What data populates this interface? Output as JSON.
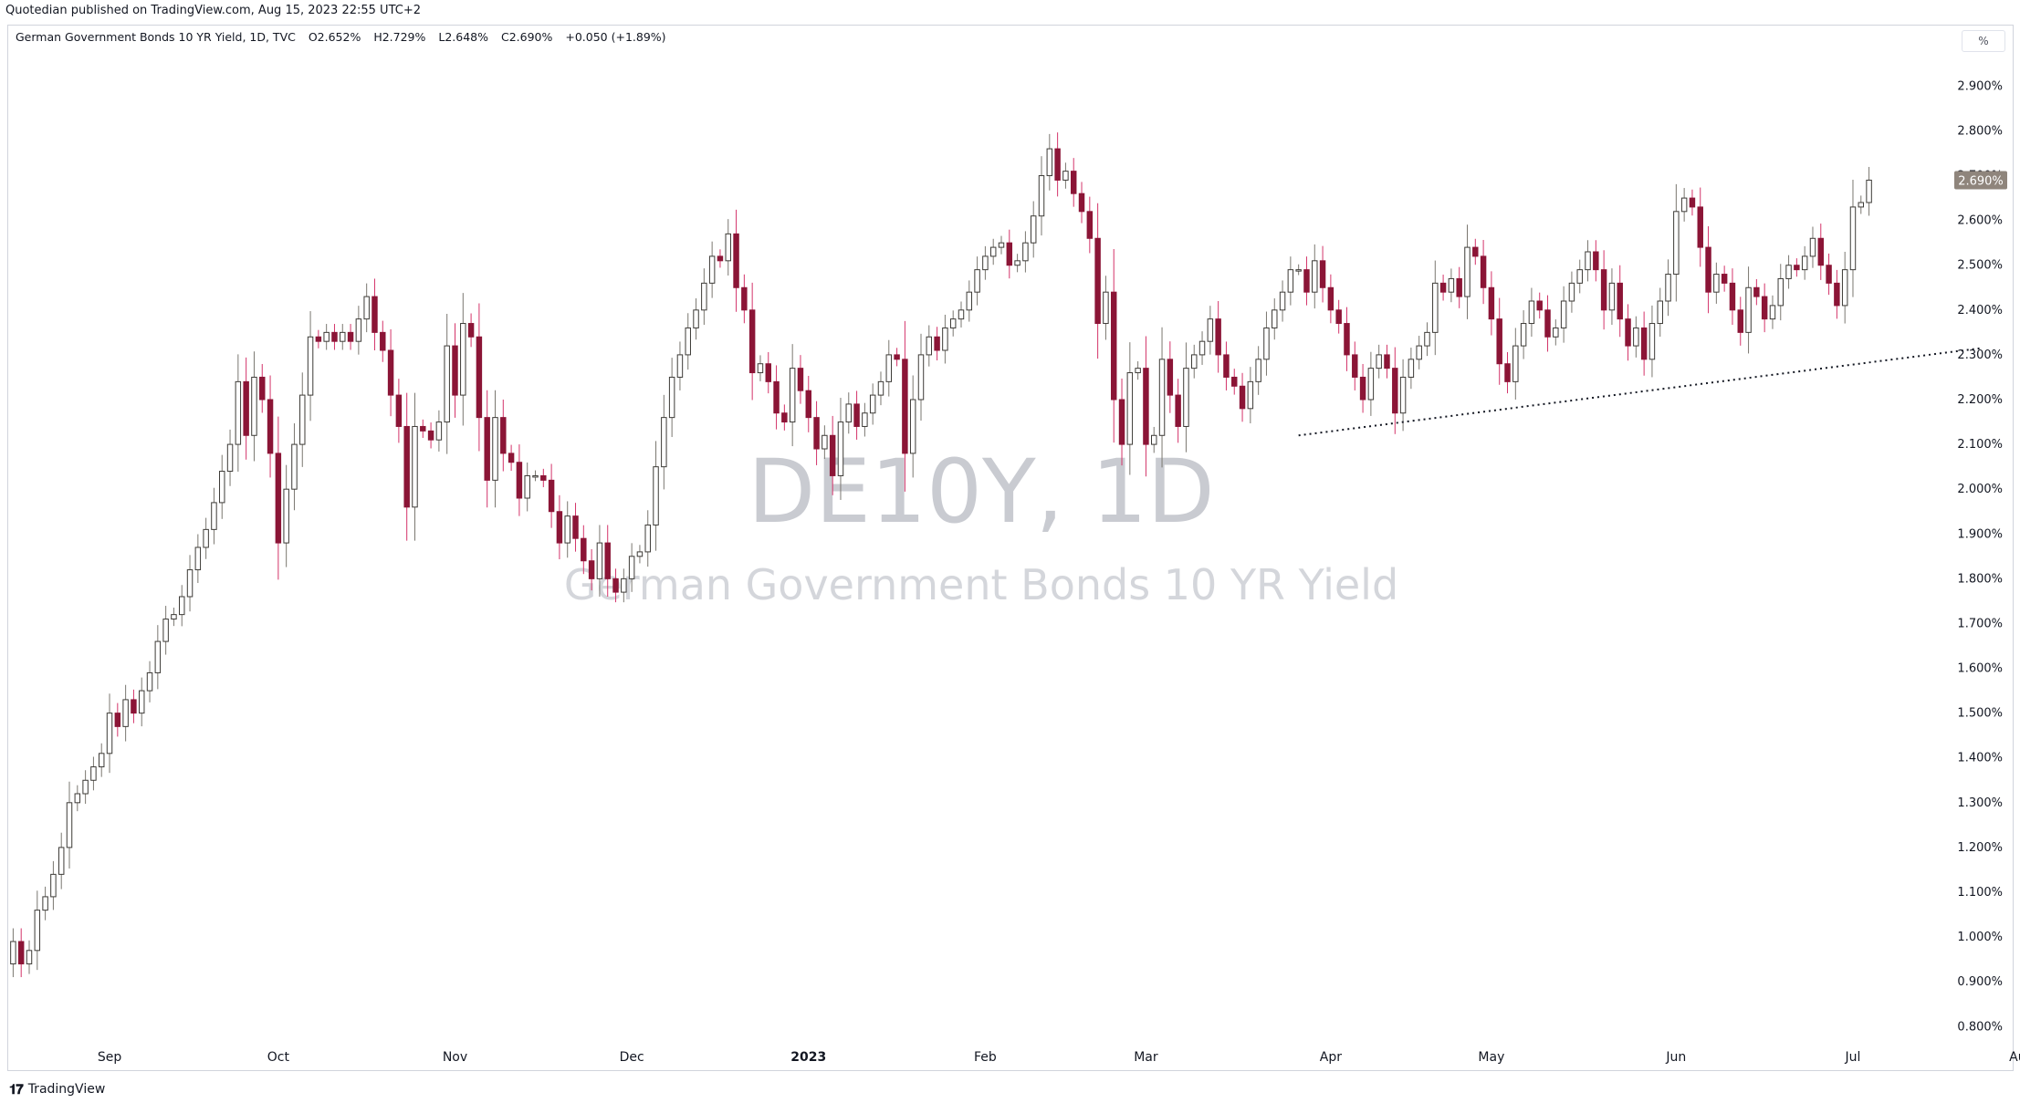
{
  "header": {
    "published": "Quotedian published on TradingView.com, Aug 15, 2023 22:55 UTC+2",
    "legend": {
      "name": "German Government Bonds 10 YR Yield, 1D, TVC",
      "open": "O2.652%",
      "high": "H2.729%",
      "low": "L2.648%",
      "close": "C2.690%",
      "change": "+0.050 (+1.89%)"
    },
    "scale_button": "%"
  },
  "watermark": {
    "symbol": "DE10Y, 1D",
    "description": "German Government Bonds 10 YR Yield"
  },
  "footer": {
    "brand": "TradingView",
    "logo": "tradingview-logo-icon"
  },
  "colors": {
    "up": "#7a7770",
    "up_fill": "#ffffff",
    "down": "#8b1536",
    "down_wick": "#d4346a",
    "last_tag": "#8f857c"
  },
  "chart_data": {
    "type": "candlestick",
    "ylim": [
      0.77,
      2.97
    ],
    "yticks": [
      "2.900%",
      "2.800%",
      "2.700%",
      "2.600%",
      "2.500%",
      "2.400%",
      "2.300%",
      "2.200%",
      "2.100%",
      "2.000%",
      "1.900%",
      "1.800%",
      "1.700%",
      "1.600%",
      "1.500%",
      "1.400%",
      "1.300%",
      "1.200%",
      "1.100%",
      "1.000%",
      "0.900%",
      "0.800%"
    ],
    "ytick_values": [
      2.9,
      2.8,
      2.7,
      2.6,
      2.5,
      2.4,
      2.3,
      2.2,
      2.1,
      2.0,
      1.9,
      1.8,
      1.7,
      1.6,
      1.5,
      1.4,
      1.3,
      1.2,
      1.1,
      1.0,
      0.9,
      0.8
    ],
    "xticks": [
      {
        "label": "Sep",
        "bar": 12,
        "bold": false
      },
      {
        "label": "Oct",
        "bar": 33,
        "bold": false
      },
      {
        "label": "Nov",
        "bar": 55,
        "bold": false
      },
      {
        "label": "Dec",
        "bar": 77,
        "bold": false
      },
      {
        "label": "2023",
        "bar": 99,
        "bold": true
      },
      {
        "label": "Feb",
        "bar": 121,
        "bold": false
      },
      {
        "label": "Mar",
        "bar": 141,
        "bold": false
      },
      {
        "label": "Apr",
        "bar": 164,
        "bold": false
      },
      {
        "label": "May",
        "bar": 184,
        "bold": false
      },
      {
        "label": "Jun",
        "bar": 207,
        "bold": false
      },
      {
        "label": "Jul",
        "bar": 229,
        "bold": false
      },
      {
        "label": "Aug",
        "bar": 250,
        "bold": false
      }
    ],
    "last_value": "2.690%",
    "last_close": 2.69,
    "trendline": {
      "from": {
        "bar": 160,
        "value": 2.12
      },
      "to": {
        "bar": 245,
        "value": 2.315
      },
      "style": "dotted"
    },
    "closes": [
      0.99,
      0.94,
      0.97,
      1.06,
      1.09,
      1.14,
      1.2,
      1.3,
      1.32,
      1.35,
      1.38,
      1.41,
      1.5,
      1.47,
      1.53,
      1.5,
      1.55,
      1.59,
      1.66,
      1.71,
      1.72,
      1.76,
      1.82,
      1.87,
      1.91,
      1.97,
      2.04,
      2.1,
      2.24,
      2.12,
      2.25,
      2.2,
      2.08,
      1.88,
      2.0,
      2.1,
      2.21,
      2.34,
      2.33,
      2.35,
      2.33,
      2.35,
      2.33,
      2.38,
      2.43,
      2.35,
      2.31,
      2.21,
      2.14,
      1.96,
      2.14,
      2.13,
      2.11,
      2.15,
      2.32,
      2.21,
      2.37,
      2.34,
      2.16,
      2.02,
      2.16,
      2.08,
      2.06,
      1.98,
      2.03,
      2.03,
      2.02,
      1.95,
      1.88,
      1.94,
      1.89,
      1.84,
      1.8,
      1.88,
      1.8,
      1.77,
      1.8,
      1.85,
      1.86,
      1.92,
      2.05,
      2.16,
      2.25,
      2.3,
      2.36,
      2.4,
      2.46,
      2.52,
      2.51,
      2.57,
      2.45,
      2.4,
      2.26,
      2.28,
      2.24,
      2.17,
      2.15,
      2.27,
      2.22,
      2.16,
      2.09,
      2.12,
      2.03,
      2.15,
      2.19,
      2.14,
      2.17,
      2.21,
      2.24,
      2.3,
      2.29,
      2.08,
      2.2,
      2.3,
      2.34,
      2.31,
      2.36,
      2.38,
      2.4,
      2.44,
      2.49,
      2.52,
      2.54,
      2.55,
      2.5,
      2.51,
      2.55,
      2.61,
      2.7,
      2.76,
      2.69,
      2.71,
      2.66,
      2.62,
      2.56,
      2.37,
      2.44,
      2.2,
      2.1,
      2.26,
      2.27,
      2.1,
      2.12,
      2.29,
      2.21,
      2.14,
      2.27,
      2.3,
      2.33,
      2.38,
      2.3,
      2.25,
      2.23,
      2.18,
      2.24,
      2.29,
      2.36,
      2.4,
      2.44,
      2.49,
      2.49,
      2.44,
      2.51,
      2.45,
      2.4,
      2.37,
      2.3,
      2.25,
      2.2,
      2.27,
      2.3,
      2.27,
      2.17,
      2.25,
      2.29,
      2.32,
      2.35,
      2.46,
      2.44,
      2.47,
      2.43,
      2.54,
      2.52,
      2.45,
      2.38,
      2.28,
      2.24,
      2.32,
      2.37,
      2.42,
      2.4,
      2.34,
      2.36,
      2.42,
      2.46,
      2.49,
      2.53,
      2.49,
      2.4,
      2.46,
      2.38,
      2.32,
      2.36,
      2.29,
      2.37,
      2.42,
      2.48,
      2.62,
      2.65,
      2.63,
      2.54,
      2.44,
      2.48,
      2.46,
      2.4,
      2.35,
      2.45,
      2.43,
      2.38,
      2.41,
      2.47,
      2.5,
      2.49,
      2.52,
      2.56,
      2.5,
      2.46,
      2.41,
      2.49,
      2.63,
      2.64,
      2.69
    ]
  }
}
